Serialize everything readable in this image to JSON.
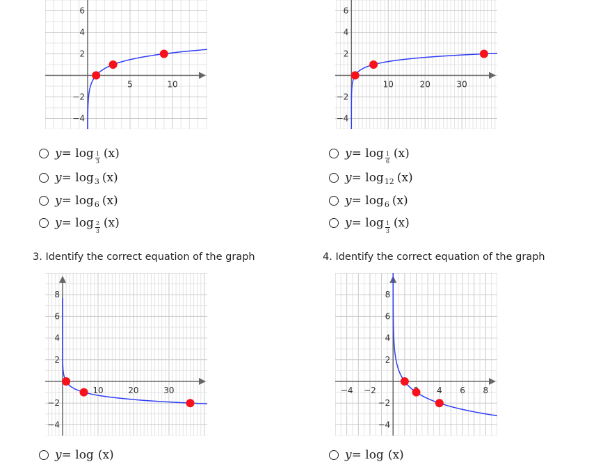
{
  "colors": {
    "curve": "#2e3df5",
    "point": "#f5121b",
    "grid_minor": "#e3e3e3",
    "grid_major": "#c9c9c9",
    "axis": "#666666"
  },
  "graphs": [
    {
      "xlim": [
        -5,
        14.1
      ],
      "ylim": [
        -5,
        7
      ],
      "x_ticks": [
        5,
        10
      ],
      "y_ticks": [
        6,
        4,
        2,
        -2,
        -4
      ],
      "x_minor": 1,
      "x_major": 5,
      "base": 3,
      "points": [
        [
          1,
          0
        ],
        [
          3,
          1
        ],
        [
          9,
          2
        ]
      ]
    },
    {
      "xlim": [
        -4.4,
        39.6
      ],
      "ylim": [
        -5,
        7
      ],
      "x_ticks": [
        10,
        20,
        30
      ],
      "y_ticks": [
        6,
        4,
        2,
        -2,
        -4
      ],
      "x_minor": 1,
      "x_major": 10,
      "base": 6,
      "points": [
        [
          1,
          0
        ],
        [
          6,
          1
        ],
        [
          36,
          2
        ]
      ]
    },
    {
      "xlim": [
        -4.9,
        40.8
      ],
      "ylim": [
        -5,
        10
      ],
      "x_ticks": [
        10,
        20,
        30
      ],
      "y_ticks": [
        8,
        6,
        4,
        2,
        -2,
        -4
      ],
      "x_minor": 1,
      "x_major": 10,
      "base": 0.16666667,
      "points": [
        [
          1,
          0
        ],
        [
          6,
          -1
        ],
        [
          36,
          -2
        ]
      ]
    },
    {
      "xlim": [
        -5,
        9
      ],
      "ylim": [
        -5,
        10
      ],
      "x_ticks": [
        -4,
        -2,
        2,
        4,
        6,
        8
      ],
      "y_ticks": [
        8,
        6,
        4,
        2,
        -2,
        -4
      ],
      "x_minor": 0.5,
      "x_major": 1,
      "base": 0.5,
      "points": [
        [
          1,
          0
        ],
        [
          2,
          -1
        ],
        [
          4,
          -2
        ]
      ]
    }
  ],
  "questions": [
    {
      "title": "3. Identify the correct equation of the graph"
    },
    {
      "title": "4. Identify the correct equation of the graph"
    }
  ],
  "options_left": [
    {
      "pre": "y",
      "eq": " = log",
      "num": "1",
      "den": "3",
      "arg": "(x)"
    },
    {
      "pre": "y",
      "eq": " = log",
      "sub": "3",
      "arg": "(x)"
    },
    {
      "pre": "y",
      "eq": " = log",
      "sub": "6",
      "arg": "(x)"
    },
    {
      "pre": "y",
      "eq": " = log",
      "num": "2",
      "den": "3",
      "arg": "(x)"
    }
  ],
  "options_right": [
    {
      "pre": "y",
      "eq": " = log",
      "num": "1",
      "den": "6",
      "arg": "(x)"
    },
    {
      "pre": "y",
      "eq": " = log",
      "sub": "12",
      "arg": "(x)"
    },
    {
      "pre": "y",
      "eq": " = log",
      "sub": "6",
      "arg": "(x)"
    },
    {
      "pre": "y",
      "eq": " = log",
      "num": "1",
      "den": "3",
      "arg": "(x)"
    }
  ],
  "cut_options": [
    {
      "pre": "y",
      "eq": " = log",
      "arg": "(x)"
    },
    {
      "pre": "y",
      "eq": " = log",
      "arg": "(x)"
    }
  ]
}
